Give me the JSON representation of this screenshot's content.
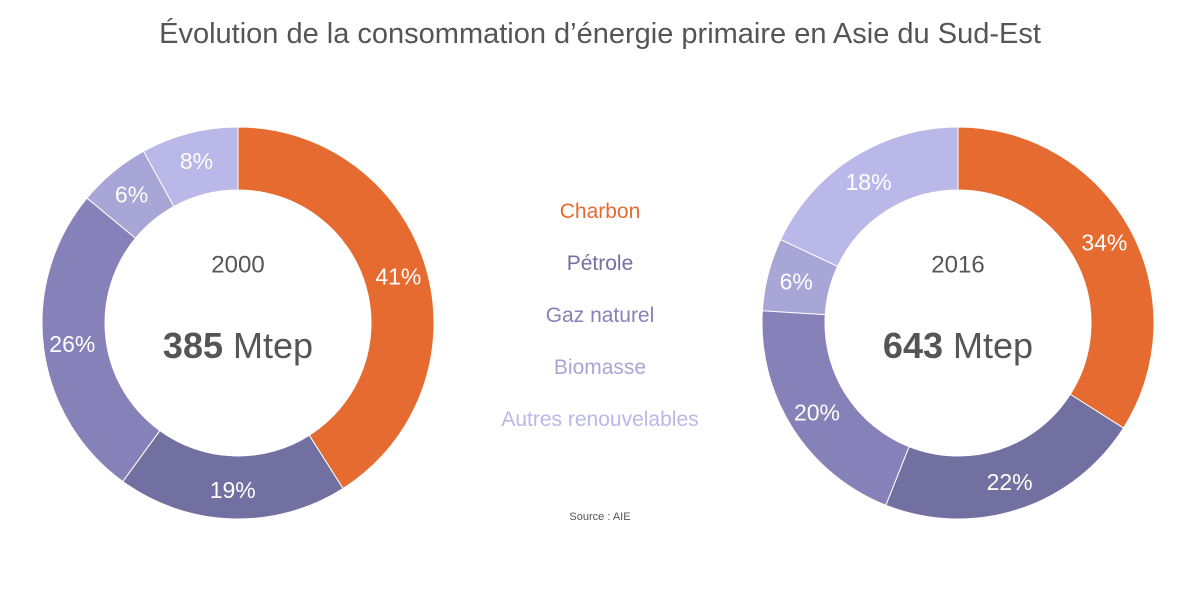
{
  "title": "Évolution de la consommation d’énergie primaire en Asie du Sud-Est",
  "source": "Source : AIE",
  "legend": [
    {
      "label": "Charbon",
      "color": "#e56b31"
    },
    {
      "label": "Pétrole",
      "color": "#7170a0"
    },
    {
      "label": "Gaz naturel",
      "color": "#8681b8"
    },
    {
      "label": "Biomasse",
      "color": "#a8a6d6"
    },
    {
      "label": "Autres renouvelables",
      "color": "#b9b8e8"
    }
  ],
  "chart_data": [
    {
      "type": "pie",
      "year": "2000",
      "total_value": "385",
      "total_unit": "Mtep",
      "categories": [
        "Charbon",
        "Pétrole",
        "Gaz naturel",
        "Biomasse",
        "Autres renouvelables"
      ],
      "values": [
        41,
        19,
        26,
        6,
        8
      ],
      "labels": [
        "41%",
        "19%",
        "26%",
        "6%",
        "8%"
      ]
    },
    {
      "type": "pie",
      "year": "2016",
      "total_value": "643",
      "total_unit": "Mtep",
      "categories": [
        "Charbon",
        "Pétrole",
        "Gaz naturel",
        "Biomasse",
        "Autres renouvelables"
      ],
      "values": [
        34,
        22,
        20,
        6,
        18
      ],
      "labels": [
        "34%",
        "22%",
        "20%",
        "6%",
        "18%"
      ]
    }
  ]
}
